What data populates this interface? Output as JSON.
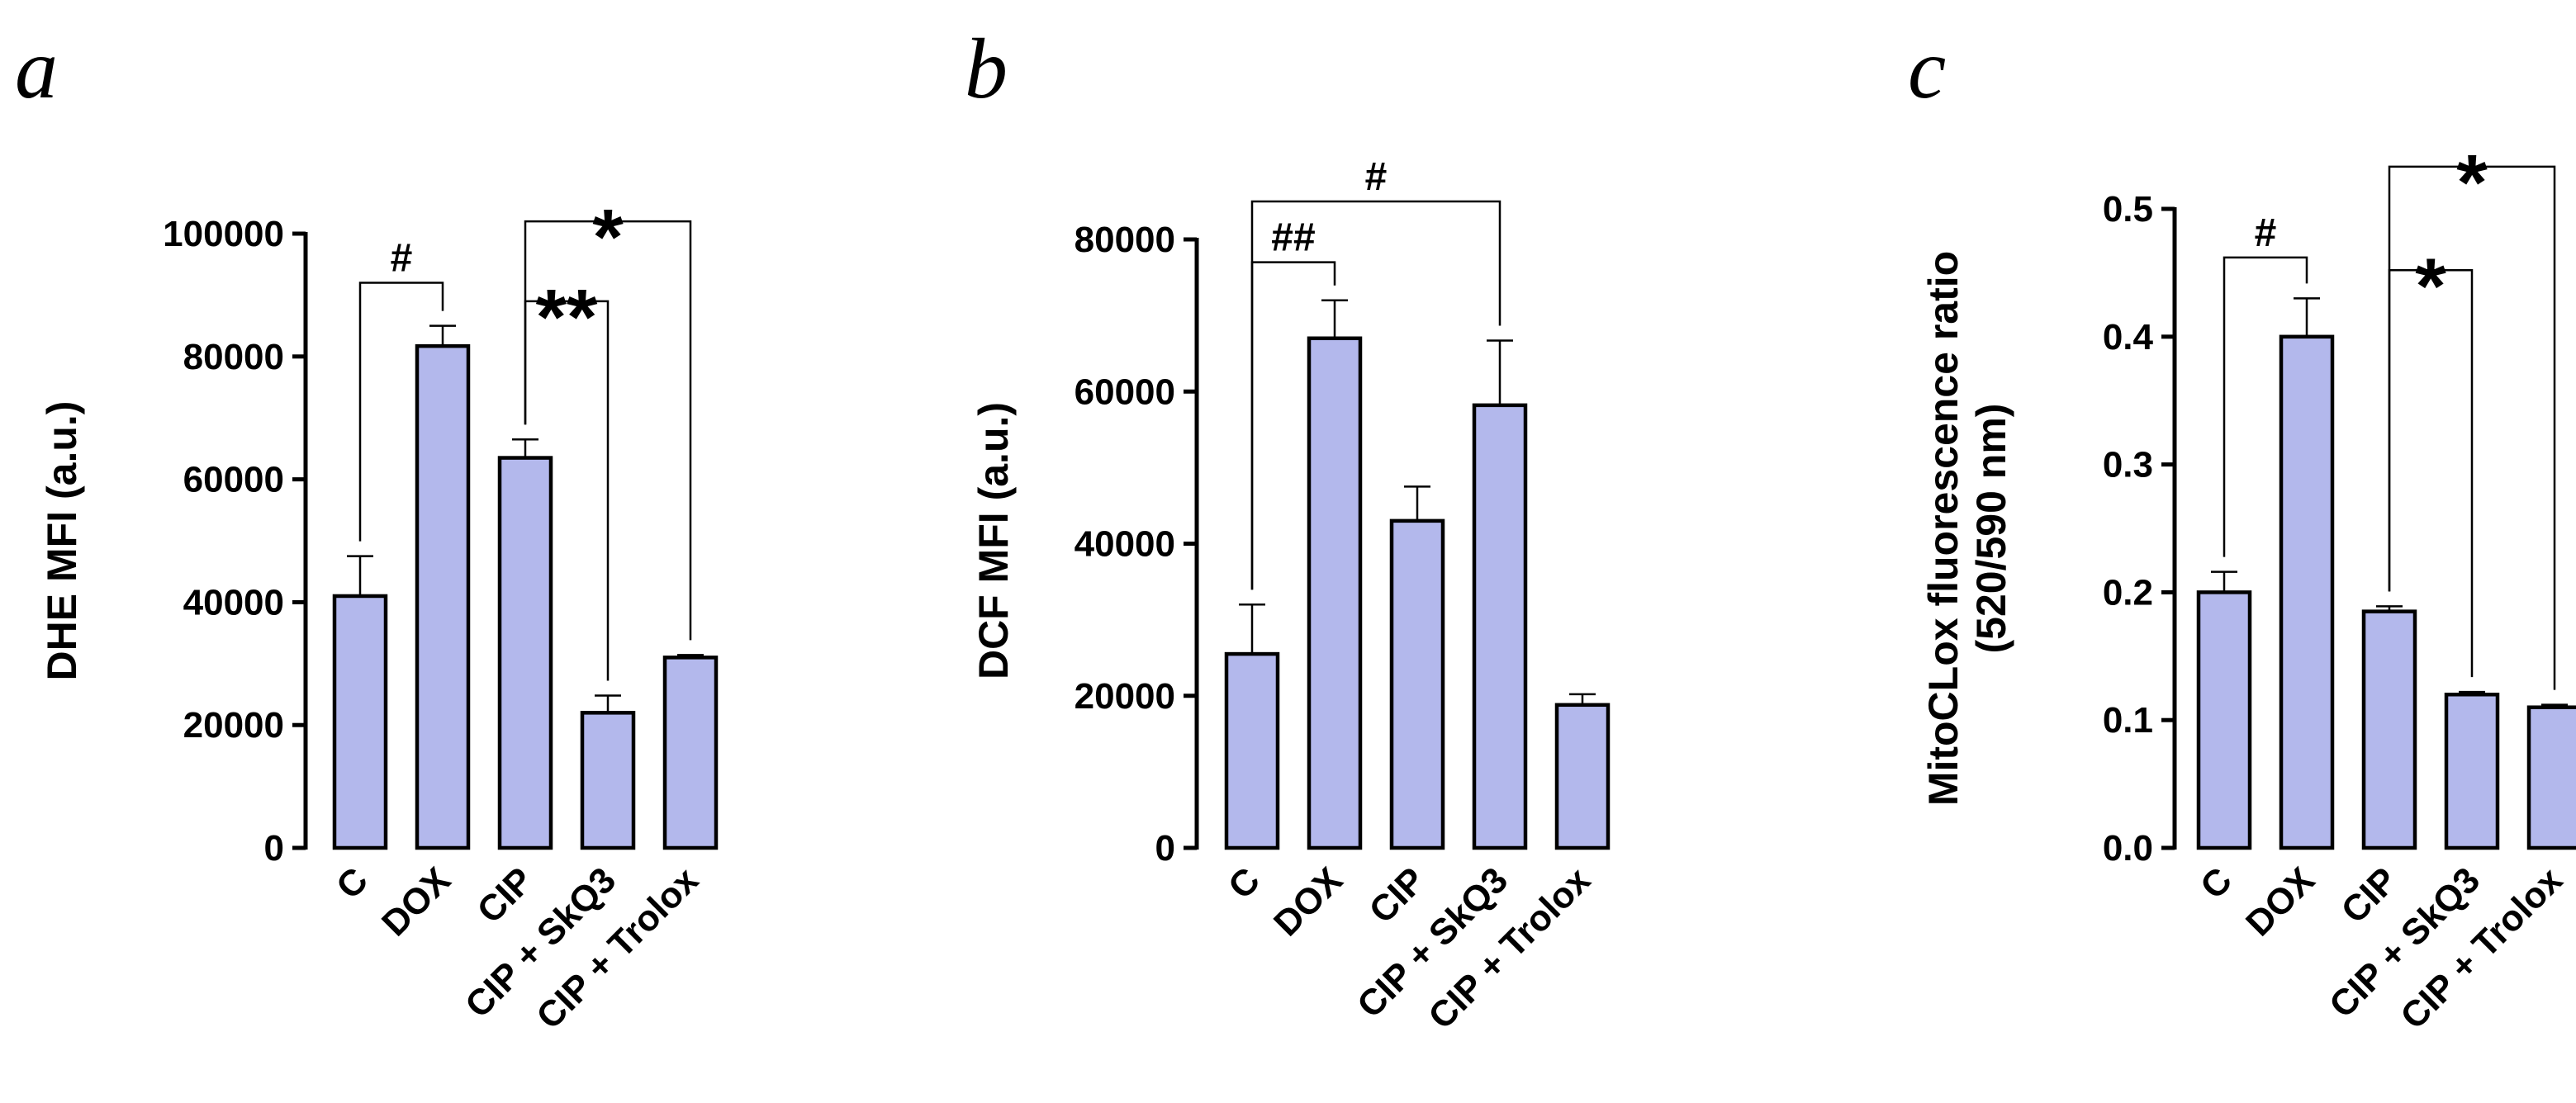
{
  "colors": {
    "bar_fill": "#b3b8ec",
    "stroke": "#000000"
  },
  "chart_data": [
    {
      "type": "bar",
      "panel_label": "a",
      "ylabel": [
        "DHE MFI (a.u.)"
      ],
      "categories": [
        "C",
        "DOX",
        "CIP",
        "CIP + SkQ3",
        "CIP + Trolox"
      ],
      "values": [
        41000,
        81700,
        63500,
        22000,
        31000
      ],
      "errors": [
        6500,
        3300,
        3000,
        2800,
        400
      ],
      "ylim": [
        0,
        100000
      ],
      "yticks": [
        0,
        20000,
        40000,
        60000,
        80000,
        100000
      ],
      "tick_labels": [
        "0",
        "20000",
        "40000",
        "60000",
        "80000",
        "100000"
      ],
      "grid": false,
      "significance": [
        {
          "from": 0,
          "to": 1,
          "label": "#",
          "level": 92000,
          "kind": "hash"
        },
        {
          "from": 2,
          "to": 3,
          "label": "**",
          "level": 89000,
          "kind": "star"
        },
        {
          "from": 2,
          "to": 4,
          "label": "*",
          "level": 102000,
          "kind": "star"
        }
      ]
    },
    {
      "type": "bar",
      "panel_label": "b",
      "ylabel": [
        "DCF MFI (a.u.)"
      ],
      "categories": [
        "C",
        "DOX",
        "CIP",
        "CIP + SkQ3",
        "CIP + Trolox"
      ],
      "values": [
        25500,
        67000,
        43000,
        58200,
        18800
      ],
      "errors": [
        6500,
        5000,
        4500,
        8500,
        1400
      ],
      "ylim": [
        0,
        80000
      ],
      "yticks": [
        0,
        20000,
        40000,
        60000,
        80000
      ],
      "tick_labels": [
        "0",
        "20000",
        "40000",
        "60000",
        "80000"
      ],
      "grid": false,
      "significance": [
        {
          "from": 0,
          "to": 1,
          "label": "##",
          "level": 77000,
          "kind": "hash"
        },
        {
          "from": 0,
          "to": 3,
          "label": "#",
          "level": 85000,
          "kind": "hash"
        }
      ]
    },
    {
      "type": "bar",
      "panel_label": "c",
      "ylabel": [
        "MitoCLox fluorescence ratio",
        "(520/590 nm)"
      ],
      "categories": [
        "C",
        "DOX",
        "CIP",
        "CIP + SkQ3",
        "CIP + Trolox"
      ],
      "values": [
        0.2,
        0.4,
        0.185,
        0.12,
        0.11
      ],
      "errors": [
        0.016,
        0.03,
        0.004,
        0.002,
        0.002
      ],
      "ylim": [
        0,
        0.5
      ],
      "yticks": [
        0,
        0.1,
        0.2,
        0.3,
        0.4,
        0.5
      ],
      "tick_labels": [
        "0.0",
        "0.1",
        "0.2",
        "0.3",
        "0.4",
        "0.5"
      ],
      "grid": false,
      "significance": [
        {
          "from": 0,
          "to": 1,
          "label": "#",
          "level": 0.462,
          "kind": "hash"
        },
        {
          "from": 2,
          "to": 3,
          "label": "*",
          "level": 0.452,
          "kind": "star"
        },
        {
          "from": 2,
          "to": 4,
          "label": "*",
          "level": 0.533,
          "kind": "star"
        }
      ]
    }
  ]
}
